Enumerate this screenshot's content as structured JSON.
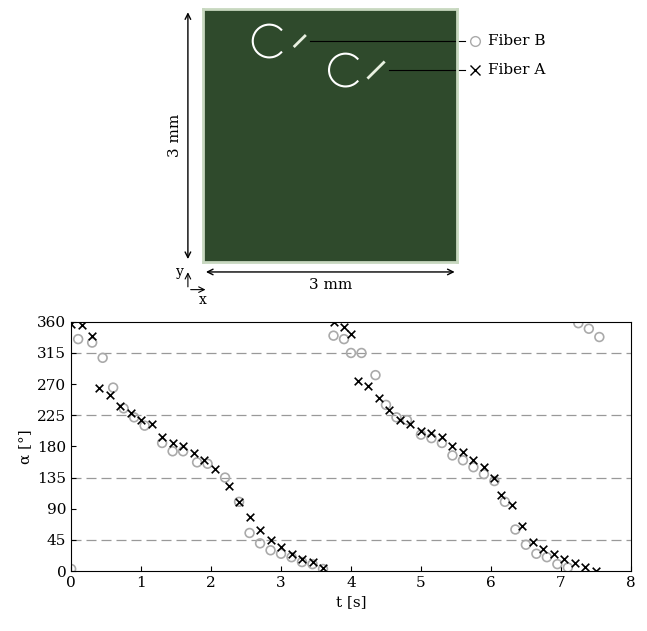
{
  "image": {
    "scale_vertical": "3 mm",
    "scale_horizontal": "3 mm",
    "axis_x": "x",
    "axis_y": "y"
  },
  "chart_data": {
    "type": "scatter",
    "xlabel": "t [s]",
    "ylabel": "α [°]",
    "xlim": [
      0,
      8
    ],
    "xticks": [
      0,
      1,
      2,
      3,
      4,
      5,
      6,
      7,
      8
    ],
    "ylim": [
      0,
      360
    ],
    "yticks": [
      0,
      45,
      90,
      135,
      180,
      225,
      270,
      315,
      360
    ],
    "hlines": [
      45,
      135,
      225,
      315
    ],
    "series": [
      {
        "name": "Fiber B",
        "color": "#aaaaaa",
        "marker": "o",
        "x": [
          0,
          0.1,
          0.3,
          0.45,
          0.6,
          0.75,
          0.9,
          1.05,
          1.3,
          1.45,
          1.6,
          1.8,
          1.95,
          2.2,
          2.4,
          2.55,
          2.7,
          2.85,
          3.0,
          3.15,
          3.3,
          3.45,
          3.6,
          3.75,
          3.9,
          4.0,
          4.15,
          4.35,
          4.5,
          4.65,
          4.8,
          5.0,
          5.15,
          5.3,
          5.45,
          5.6,
          5.75,
          5.9,
          6.05,
          6.2,
          6.35,
          6.5,
          6.65,
          6.8,
          6.95,
          7.1,
          7.25,
          7.4,
          7.55
        ],
        "values": [
          3,
          335,
          330,
          308,
          265,
          235,
          222,
          210,
          185,
          173,
          173,
          157,
          155,
          135,
          100,
          55,
          40,
          30,
          25,
          20,
          13,
          10,
          3,
          340,
          335,
          315,
          315,
          283,
          240,
          222,
          218,
          197,
          192,
          185,
          167,
          160,
          150,
          140,
          130,
          100,
          60,
          38,
          25,
          20,
          10,
          5,
          358,
          350,
          338
        ]
      },
      {
        "name": "Fiber A",
        "color": "#000000",
        "marker": "x",
        "x": [
          0,
          0.15,
          0.3,
          0.4,
          0.55,
          0.7,
          0.85,
          1.0,
          1.15,
          1.3,
          1.45,
          1.6,
          1.75,
          1.9,
          2.05,
          2.25,
          2.4,
          2.55,
          2.7,
          2.85,
          3.0,
          3.15,
          3.3,
          3.45,
          3.6,
          3.75,
          3.9,
          4.0,
          4.1,
          4.25,
          4.4,
          4.55,
          4.7,
          4.85,
          5.0,
          5.15,
          5.3,
          5.45,
          5.6,
          5.75,
          5.9,
          6.05,
          6.15,
          6.3,
          6.45,
          6.6,
          6.75,
          6.9,
          7.05,
          7.2,
          7.35,
          7.5
        ],
        "values": [
          357,
          355,
          340,
          265,
          255,
          238,
          228,
          218,
          212,
          193,
          185,
          180,
          170,
          160,
          148,
          123,
          100,
          78,
          60,
          45,
          35,
          25,
          18,
          13,
          5,
          360,
          352,
          343,
          275,
          268,
          250,
          232,
          218,
          213,
          203,
          200,
          193,
          180,
          172,
          160,
          150,
          135,
          110,
          95,
          65,
          42,
          32,
          25,
          18,
          12,
          6,
          0
        ]
      }
    ]
  }
}
